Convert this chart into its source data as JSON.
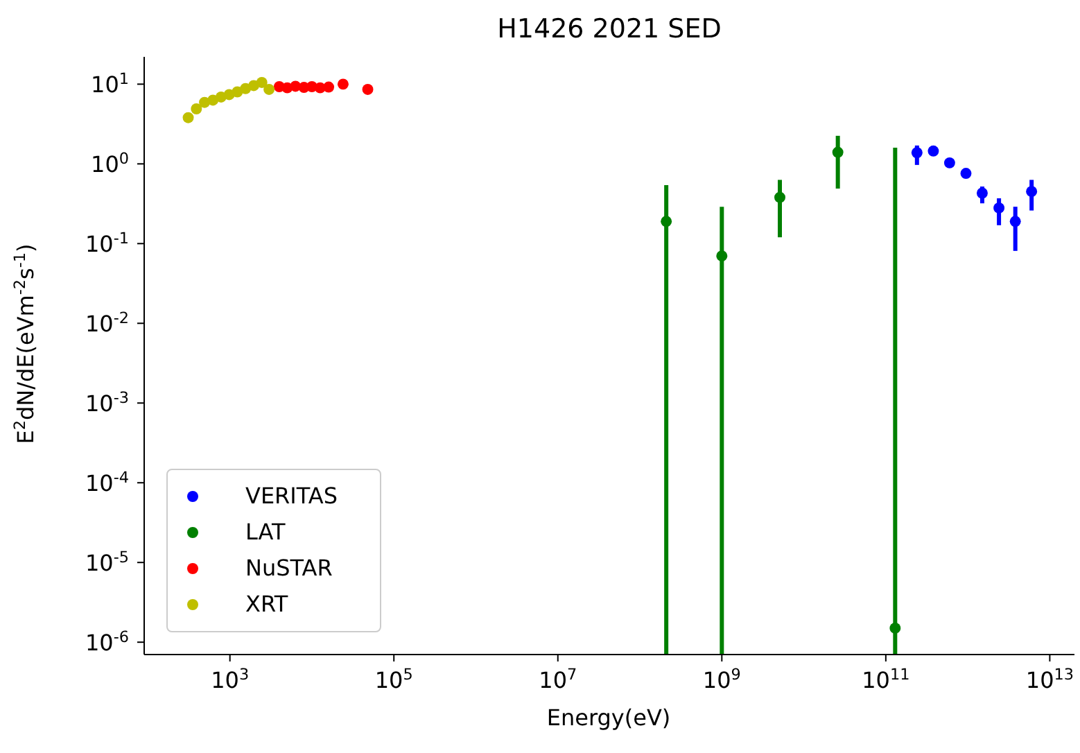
{
  "chart_data": {
    "type": "scatter",
    "title": "H1426 2021 SED",
    "xlabel": "Energy(eV)",
    "ylabel": "E$^{2}$dN/dE(eVm$^{-2}$s$^{-1}$)",
    "log": "xy",
    "grid": false,
    "legend": "bottom left",
    "marker": "circle",
    "xlim": [
      90,
      20000000000000.0
    ],
    "ylim": [
      7e-07,
      22
    ],
    "xticks": [
      {
        "value": 1000,
        "label": "10$^{3}$"
      },
      {
        "value": 100000,
        "label": "10$^{5}$"
      },
      {
        "value": 10000000,
        "label": "10$^{7}$"
      },
      {
        "value": 1000000000,
        "label": "10$^{9}$"
      },
      {
        "value": 100000000000,
        "label": "10$^{11}$"
      },
      {
        "value": 10000000000000,
        "label": "10$^{13}$"
      }
    ],
    "yticks": [
      {
        "value": 1e-06,
        "label": "10$^{-6}$"
      },
      {
        "value": 1e-05,
        "label": "10$^{-5}$"
      },
      {
        "value": 0.0001,
        "label": "10$^{-4}$"
      },
      {
        "value": 0.001,
        "label": "10$^{-3}$"
      },
      {
        "value": 0.01,
        "label": "10$^{-2}$"
      },
      {
        "value": 0.1,
        "label": "10$^{-1}$"
      },
      {
        "value": 1,
        "label": "10$^{0}$"
      },
      {
        "value": 10,
        "label": "10$^{1}$"
      }
    ],
    "series": [
      {
        "name": "VERITAS",
        "color": "#0000ff",
        "x": [
          240000000000.0,
          380000000000.0,
          600000000000.0,
          950000000000.0,
          1500000000000.0,
          2400000000000.0,
          3800000000000.0,
          6000000000000.0
        ],
        "values": [
          1.38,
          1.45,
          1.03,
          0.76,
          0.43,
          0.28,
          0.19,
          0.45
        ],
        "errors": [
          [
            0.97,
            1.7
          ],
          null,
          null,
          null,
          [
            0.32,
            0.52
          ],
          [
            0.17,
            0.37
          ],
          [
            0.081,
            0.29
          ],
          [
            0.26,
            0.63
          ]
        ]
      },
      {
        "name": "LAT",
        "color": "#008000",
        "x": [
          210000000.0,
          1000000000.0,
          5100000000.0,
          26000000000.0,
          130000000000.0
        ],
        "values": [
          0.19,
          0.07,
          0.38,
          1.4,
          1.5e-06
        ],
        "errors": [
          [
            7e-07,
            0.54
          ],
          [
            7e-07,
            0.29
          ],
          [
            0.12,
            0.63
          ],
          [
            0.49,
            2.25
          ],
          [
            7e-07,
            1.6
          ]
        ]
      },
      {
        "name": "NuSTAR",
        "color": "#ff0000",
        "x": [
          4000,
          5000,
          6300,
          8000,
          10000,
          12600,
          16000,
          24000,
          48000
        ],
        "values": [
          9.3,
          9.0,
          9.4,
          9.1,
          9.3,
          9.0,
          9.2,
          10,
          8.6
        ]
      },
      {
        "name": "XRT",
        "color": "#bfbf00",
        "x": [
          310,
          390,
          490,
          620,
          780,
          980,
          1230,
          1550,
          1950,
          2450,
          3000
        ],
        "values": [
          3.8,
          4.9,
          5.9,
          6.3,
          6.9,
          7.4,
          8.0,
          8.8,
          9.6,
          10.5,
          8.6
        ]
      }
    ]
  }
}
